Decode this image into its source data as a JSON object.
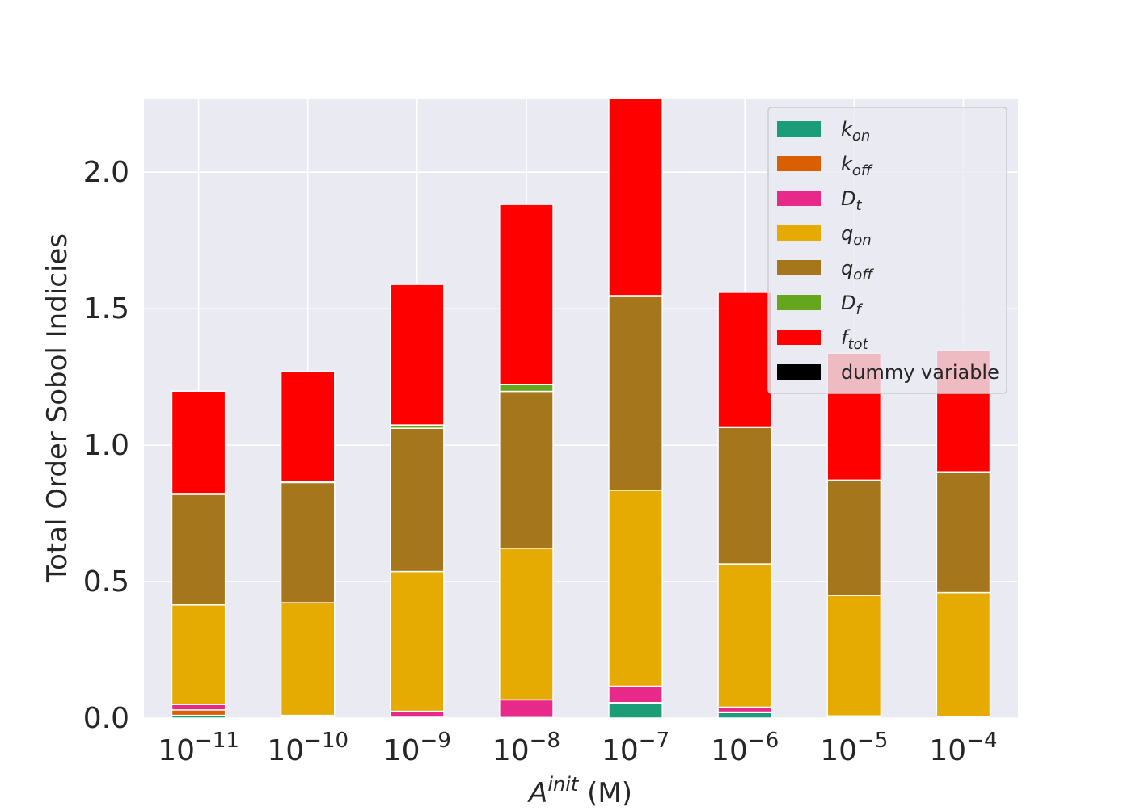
{
  "chart_data": {
    "type": "bar",
    "stacked": true,
    "title": "",
    "xlabel": {
      "main": "A",
      "sup": "init",
      "unit": " (M)"
    },
    "ylabel": "Total Order Sobol Indicies",
    "ylim": [
      0,
      2.27
    ],
    "yticks": [
      "0.0",
      "0.5",
      "1.0",
      "1.5",
      "2.0"
    ],
    "ytick_values": [
      0,
      0.5,
      1.0,
      1.5,
      2.0
    ],
    "categories": [
      {
        "base": "10",
        "exp": "−11"
      },
      {
        "base": "10",
        "exp": "−10"
      },
      {
        "base": "10",
        "exp": "−9"
      },
      {
        "base": "10",
        "exp": "−8"
      },
      {
        "base": "10",
        "exp": "−7"
      },
      {
        "base": "10",
        "exp": "−6"
      },
      {
        "base": "10",
        "exp": "−5"
      },
      {
        "base": "10",
        "exp": "−4"
      }
    ],
    "category_values": [
      "1e-11",
      "1e-10",
      "1e-9",
      "1e-8",
      "1e-7",
      "1e-6",
      "1e-5",
      "1e-4"
    ],
    "grid": true,
    "legend_position": "top-right",
    "series": [
      {
        "name": "k_on",
        "label_main": "k",
        "label_sub": "on",
        "color": "#1b9e77",
        "values": [
          0.01,
          0.003,
          0.002,
          0.001,
          0.055,
          0.02,
          0.003,
          0.002
        ]
      },
      {
        "name": "k_off",
        "label_main": "k",
        "label_sub": "off",
        "color": "#d95f02",
        "values": [
          0.02,
          0.002,
          0.001,
          0.001,
          0.002,
          0.002,
          0.002,
          0.001
        ]
      },
      {
        "name": "D_t",
        "label_main": "D",
        "label_sub": "t",
        "color": "#e7298a",
        "values": [
          0.02,
          0.005,
          0.022,
          0.065,
          0.06,
          0.018,
          0.003,
          0.002
        ]
      },
      {
        "name": "q_on",
        "label_main": "q",
        "label_sub": "on",
        "color": "#e6ab02",
        "values": [
          0.365,
          0.413,
          0.512,
          0.555,
          0.718,
          0.525,
          0.442,
          0.455
        ]
      },
      {
        "name": "q_off",
        "label_main": "q",
        "label_sub": "off",
        "color": "#a6761d",
        "values": [
          0.405,
          0.44,
          0.525,
          0.575,
          0.71,
          0.5,
          0.42,
          0.44
        ]
      },
      {
        "name": "D_f",
        "label_main": "D",
        "label_sub": "f",
        "color": "#66a61e",
        "values": [
          0.003,
          0.003,
          0.012,
          0.025,
          0.003,
          0.002,
          0.002,
          0.002
        ]
      },
      {
        "name": "f_tot",
        "label_main": "f",
        "label_sub": "tot",
        "color": "#ff0000",
        "values": [
          0.375,
          0.404,
          0.515,
          0.66,
          0.73,
          0.493,
          0.465,
          0.445
        ]
      },
      {
        "name": "dummy variable",
        "label_main": "dummy variable",
        "label_sub": "",
        "color": "#000000",
        "values": [
          0,
          0,
          0,
          0,
          0,
          0,
          0,
          0
        ]
      }
    ]
  }
}
